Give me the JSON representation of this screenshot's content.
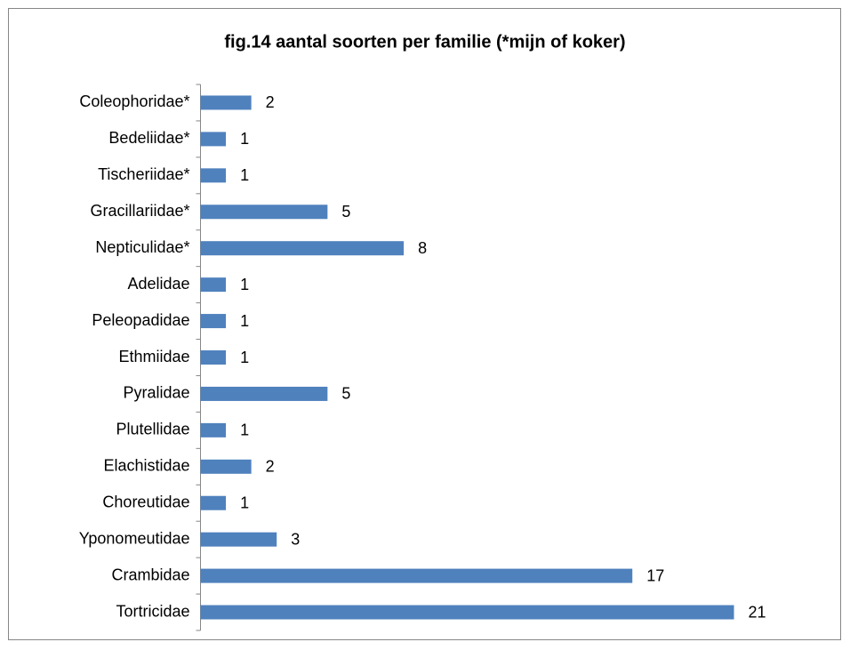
{
  "chart_data": {
    "type": "bar",
    "orientation": "horizontal",
    "title": "fig.14 aantal soorten per familie (*mijn of koker)",
    "categories": [
      "Coleophoridae*",
      "Bedeliidae*",
      "Tischeriidae*",
      "Gracillariidae*",
      "Nepticulidae*",
      "Adelidae",
      "Peleopadidae",
      "Ethmiidae",
      "Pyralidae",
      "Plutellidae",
      "Elachistidae",
      "Choreutidae",
      "Yponomeutidae",
      "Crambidae",
      "Tortricidae"
    ],
    "values": [
      2,
      1,
      1,
      5,
      8,
      1,
      1,
      1,
      5,
      1,
      2,
      1,
      3,
      17,
      21
    ],
    "color": "#4f81bd"
  }
}
